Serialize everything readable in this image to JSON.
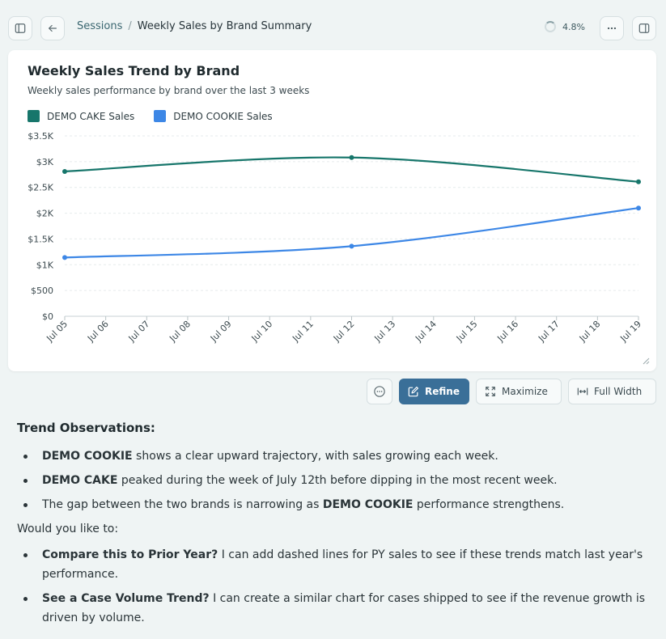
{
  "header": {
    "breadcrumb_parent": "Sessions",
    "breadcrumb_separator": "/",
    "breadcrumb_current": "Weekly Sales by Brand Summary",
    "progress_text": "4.8%"
  },
  "chart_card": {
    "title": "Weekly Sales Trend by Brand",
    "subtitle": "Weekly sales performance by brand over the last 3 weeks"
  },
  "chart_data": {
    "type": "line",
    "title": "Weekly Sales Trend by Brand",
    "subtitle": "Weekly sales performance by brand over the last 3 weeks",
    "x": [
      "Jul 05",
      "Jul 06",
      "Jul 07",
      "Jul 08",
      "Jul 09",
      "Jul 10",
      "Jul 11",
      "Jul 12",
      "Jul 13",
      "Jul 14",
      "Jul 15",
      "Jul 16",
      "Jul 17",
      "Jul 18",
      "Jul 19"
    ],
    "y_ticks": [
      "$0",
      "$500",
      "$1K",
      "$1.5K",
      "$2K",
      "$2.5K",
      "$3K",
      "$3.5K"
    ],
    "ylim": [
      0,
      3500
    ],
    "legend_position": "top-left",
    "grid": "horizontal dashed",
    "series": [
      {
        "name": "DEMO CAKE Sales",
        "color": "#17766b",
        "points": [
          [
            "Jul 05",
            2810
          ],
          [
            "Jul 12",
            3080
          ],
          [
            "Jul 19",
            2610
          ]
        ]
      },
      {
        "name": "DEMO COOKIE Sales",
        "color": "#3d87e6",
        "points": [
          [
            "Jul 05",
            1140
          ],
          [
            "Jul 12",
            1360
          ],
          [
            "Jul 19",
            2100
          ]
        ]
      }
    ]
  },
  "actions": {
    "more_icon": "more-circle-icon",
    "refine_label": "Refine",
    "maximize_label": "Maximize",
    "full_width_label": "Full Width"
  },
  "content": {
    "observations_heading": "Trend Observations:",
    "observations": [
      {
        "bold": "DEMO COOKIE",
        "rest": " shows a clear upward trajectory, with sales growing each week."
      },
      {
        "bold": "DEMO CAKE",
        "rest": " peaked during the week of July 12th before dipping in the most recent week."
      },
      {
        "pre": "The gap between the two brands is narrowing as ",
        "bold": "DEMO COOKIE",
        "rest": " performance strengthens."
      }
    ],
    "question": "Would you like to:",
    "options": [
      {
        "bold": "Compare this to Prior Year?",
        "rest": " I can add dashed lines for PY sales to see if these trends match last year's performance."
      },
      {
        "bold": "See a Case Volume Trend?",
        "rest": " I can create a similar chart for cases shipped to see if the revenue growth is driven by volume."
      }
    ]
  }
}
